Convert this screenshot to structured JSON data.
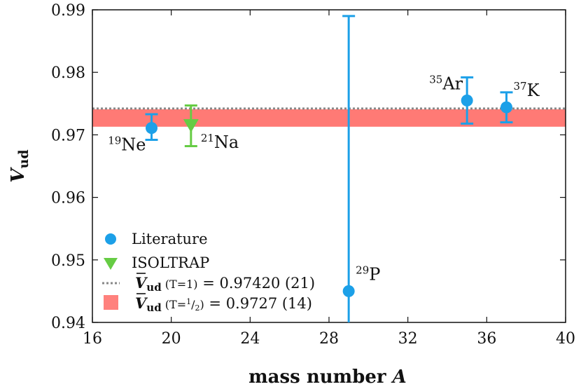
{
  "chart_data": {
    "type": "scatter",
    "xlabel": {
      "main": "mass number ",
      "var": "A"
    },
    "ylabel": {
      "main": "V",
      "sub": "ud"
    },
    "xlim": [
      16,
      40
    ],
    "ylim": [
      0.94,
      0.99
    ],
    "xticks": [
      16,
      20,
      24,
      28,
      32,
      36,
      40
    ],
    "xtick_labels": [
      "16",
      "20",
      "24",
      "28",
      "32",
      "36",
      "40"
    ],
    "yticks": [
      0.94,
      0.95,
      0.96,
      0.97,
      0.98,
      0.99
    ],
    "ytick_labels": [
      "0.94",
      "0.95",
      "0.96",
      "0.97",
      "0.98",
      "0.99"
    ],
    "series": [
      {
        "name": "Literature",
        "marker": "circle",
        "color": "#1ca0e8",
        "points": [
          {
            "label_mass": "19",
            "label_symbol": "Ne",
            "x": 19,
            "y": 0.9711,
            "err_low": 0.0019,
            "err_high": 0.0022
          },
          {
            "label_mass": "29",
            "label_symbol": "P",
            "x": 29,
            "y": 0.945,
            "err_low": 0.006,
            "err_high": 0.044
          },
          {
            "label_mass": "35",
            "label_symbol": "Ar",
            "x": 35,
            "y": 0.9755,
            "err_low": 0.0037,
            "err_high": 0.0037
          },
          {
            "label_mass": "37",
            "label_symbol": "K",
            "x": 37,
            "y": 0.9744,
            "err_low": 0.0024,
            "err_high": 0.0024
          }
        ]
      },
      {
        "name": "ISOLTRAP",
        "marker": "triangle-down",
        "color": "#66cc44",
        "points": [
          {
            "label_mass": "21",
            "label_symbol": "Na",
            "x": 21,
            "y": 0.9715,
            "err_low": 0.0033,
            "err_high": 0.0032
          }
        ]
      }
    ],
    "reference_lines": [
      {
        "name": "Vud (T=1)",
        "value": 0.9742,
        "uncertainty": 0.00021,
        "style": "dotted",
        "color": "#888888"
      }
    ],
    "bands": [
      {
        "name": "Vud (T=1/2)",
        "center": 0.9727,
        "half_width": 0.0014,
        "color": "#ff6b66"
      }
    ],
    "legend": {
      "position": "bottom-left",
      "entries": [
        {
          "text": "Literature"
        },
        {
          "text": "ISOLTRAP"
        },
        {
          "symbol": "V",
          "sub": "ud",
          "cond": " (T=1)",
          "value": " = 0.97420 (21)"
        },
        {
          "symbol": "V",
          "sub": "ud",
          "cond_pre": " (T=",
          "cond_num": "1",
          "cond_den": "2",
          "cond_post": ")",
          "value": " = 0.9727 (14)"
        }
      ]
    }
  }
}
